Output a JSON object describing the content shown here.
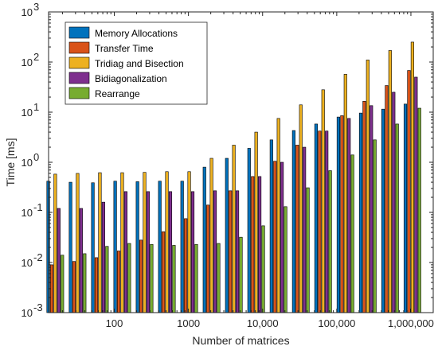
{
  "chart_data": {
    "type": "bar",
    "ylabel": "Time [ms]",
    "xlabel": "Number of matrices",
    "yscale": "log",
    "ylim": [
      0.001,
      1000
    ],
    "y_ticks": [
      {
        "value": 0.001,
        "base": "10",
        "exp": "-3"
      },
      {
        "value": 0.01,
        "base": "10",
        "exp": "-2"
      },
      {
        "value": 0.1,
        "base": "10",
        "exp": "-1"
      },
      {
        "value": 1,
        "base": "10",
        "exp": "0"
      },
      {
        "value": 10,
        "base": "10",
        "exp": "1"
      },
      {
        "value": 100,
        "base": "10",
        "exp": "2"
      },
      {
        "value": 1000,
        "base": "10",
        "exp": "3"
      }
    ],
    "xscale": "log",
    "xlim": [
      13,
      2000000
    ],
    "x_ticks": [
      {
        "value": 100,
        "label": "100"
      },
      {
        "value": 1000,
        "label": "1000"
      },
      {
        "value": 10000,
        "label": "10,000"
      },
      {
        "value": 100000,
        "label": "100,000"
      },
      {
        "value": 1000000,
        "label": "1,000,000"
      }
    ],
    "legend_position": "top-left",
    "grid": false,
    "x": [
      16,
      32,
      64,
      128,
      256,
      512,
      1024,
      2048,
      4096,
      8192,
      16384,
      32768,
      65536,
      131072,
      262144,
      524288,
      1048576
    ],
    "series": [
      {
        "name": "Memory Allocations",
        "color": "#0072BD",
        "values": [
          0.42,
          0.4,
          0.39,
          0.42,
          0.41,
          0.42,
          0.42,
          0.8,
          1.2,
          1.9,
          2.8,
          4.3,
          5.8,
          8.0,
          9.6,
          11.5,
          14.5
        ]
      },
      {
        "name": "Transfer Time",
        "color": "#D95319",
        "values": [
          0.009,
          0.0105,
          0.0125,
          0.017,
          0.028,
          0.041,
          0.075,
          0.14,
          0.27,
          0.52,
          1.05,
          2.2,
          4.2,
          8.5,
          16.5,
          34,
          68
        ]
      },
      {
        "name": "Tridiag and Bisection",
        "color": "#EDB120",
        "values": [
          0.58,
          0.6,
          0.62,
          0.62,
          0.63,
          0.65,
          0.65,
          1.2,
          2.2,
          4.0,
          7.5,
          14,
          28,
          57,
          110,
          170,
          250
        ]
      },
      {
        "name": "Bidiagonalization",
        "color": "#7E2F8E",
        "values": [
          0.12,
          0.12,
          0.16,
          0.26,
          0.26,
          0.26,
          0.26,
          0.27,
          0.27,
          0.52,
          1.0,
          2.0,
          4.2,
          7.5,
          13.5,
          25,
          50
        ]
      },
      {
        "name": "Rearrange",
        "color": "#77AC30",
        "values": [
          0.014,
          0.015,
          0.021,
          0.024,
          0.023,
          0.022,
          0.023,
          0.024,
          0.032,
          0.054,
          0.13,
          0.31,
          0.68,
          1.4,
          2.8,
          5.8,
          12
        ]
      }
    ]
  }
}
